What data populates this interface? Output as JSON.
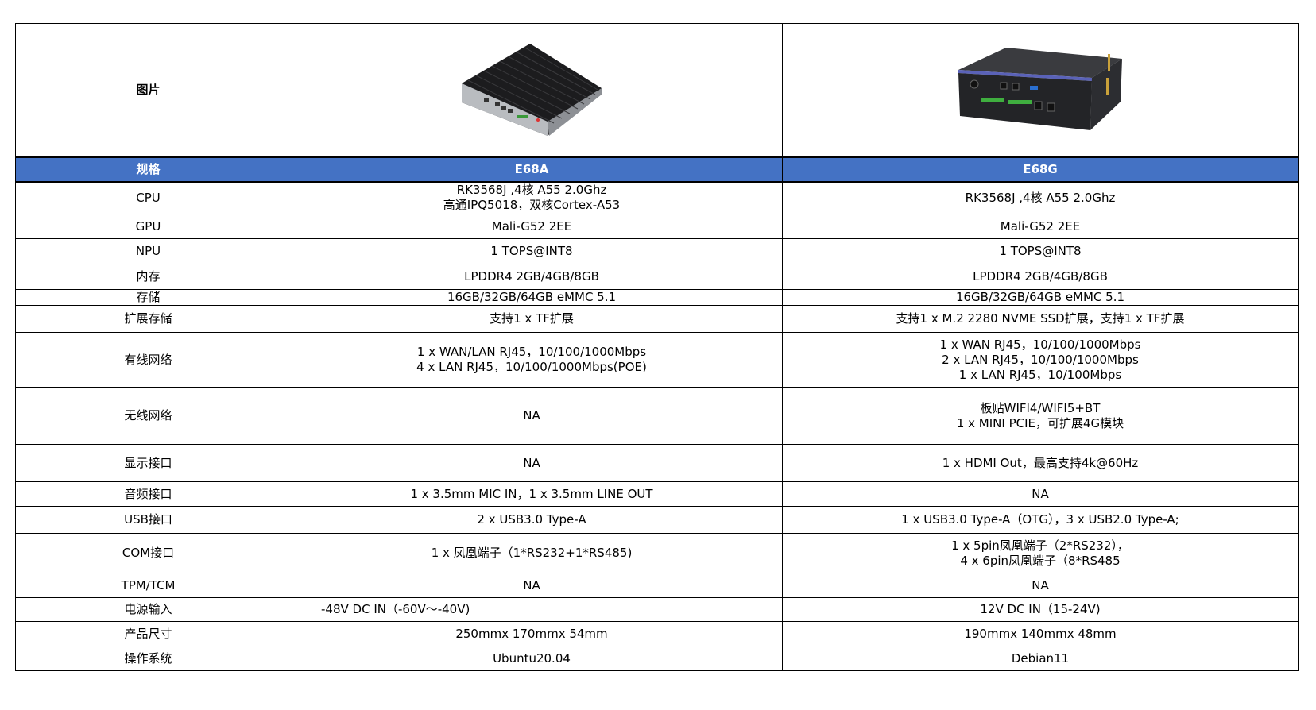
{
  "header_row": {
    "label": "图片"
  },
  "columns": {
    "spec": "规格",
    "model_a": "E68A",
    "model_b": "E68G"
  },
  "header_color": "#4472C4",
  "images": {
    "model_a": "fanless-heatsink-box-pc-image",
    "model_b": "black-box-gateway-image"
  },
  "rows": [
    {
      "label": "CPU",
      "a": [
        "RK3568J ,4核 A55 2.0Ghz",
        "高通IPQ5018，双核Cortex-A53"
      ],
      "b": [
        "RK3568J ,4核 A55 2.0Ghz"
      ]
    },
    {
      "label": "GPU",
      "a": [
        "Mali-G52 2EE"
      ],
      "b": [
        "Mali-G52 2EE"
      ]
    },
    {
      "label": "NPU",
      "a": [
        "1 TOPS@INT8"
      ],
      "b": [
        "1 TOPS@INT8"
      ]
    },
    {
      "label": "内存",
      "a": [
        "LPDDR4 2GB/4GB/8GB"
      ],
      "b": [
        "LPDDR4 2GB/4GB/8GB"
      ]
    },
    {
      "label": "存储",
      "a": [
        "16GB/32GB/64GB eMMC 5.1"
      ],
      "b": [
        "16GB/32GB/64GB eMMC 5.1"
      ]
    },
    {
      "label": "扩展存储",
      "a": [
        "支持1 x TF扩展"
      ],
      "b": [
        "支持1 x M.2 2280 NVME SSD扩展，支持1 x TF扩展"
      ]
    },
    {
      "label": "有线网络",
      "a": [
        "1 x WAN/LAN RJ45，10/100/1000Mbps",
        "4 x LAN RJ45，10/100/1000Mbps(POE)"
      ],
      "b": [
        "1 x WAN RJ45，10/100/1000Mbps",
        "2 x LAN RJ45，10/100/1000Mbps",
        "1 x LAN RJ45，10/100Mbps"
      ]
    },
    {
      "label": "无线网络",
      "a": [
        "NA"
      ],
      "b": [
        "板贴WIFI4/WIFI5+BT",
        "1 x MINI PCIE，可扩展4G模块"
      ]
    },
    {
      "label": "显示接口",
      "a": [
        "NA"
      ],
      "b": [
        "1 x HDMI Out，最高支持4k@60Hz"
      ]
    },
    {
      "label": "音频接口",
      "a": [
        "1 x 3.5mm MIC IN，1 x 3.5mm LINE OUT"
      ],
      "b": [
        "NA"
      ]
    },
    {
      "label": "USB接口",
      "a": [
        "2 x USB3.0 Type-A"
      ],
      "b": [
        "1 x USB3.0 Type-A（OTG），3 x USB2.0 Type-A;"
      ]
    },
    {
      "label": "COM接口",
      "a": [
        "1 x 凤凰端子（1*RS232+1*RS485)"
      ],
      "b": [
        "1 x 5pin凤凰端子（2*RS232），",
        "4 x 6pin凤凰端子（8*RS485"
      ]
    },
    {
      "label": "TPM/TCM",
      "a": [
        "NA"
      ],
      "b": [
        "NA"
      ]
    },
    {
      "label": "电源输入",
      "a": [
        "-48V DC IN（-60V～-40V)"
      ],
      "b": [
        "12V DC IN（15-24V)"
      ]
    },
    {
      "label": "产品尺寸",
      "a": [
        "250mmx 170mmx 54mm"
      ],
      "b": [
        "190mmx 140mmx 48mm"
      ]
    },
    {
      "label": "操作系统",
      "a": [
        "Ubuntu20.04"
      ],
      "b": [
        "Debian11"
      ]
    }
  ]
}
